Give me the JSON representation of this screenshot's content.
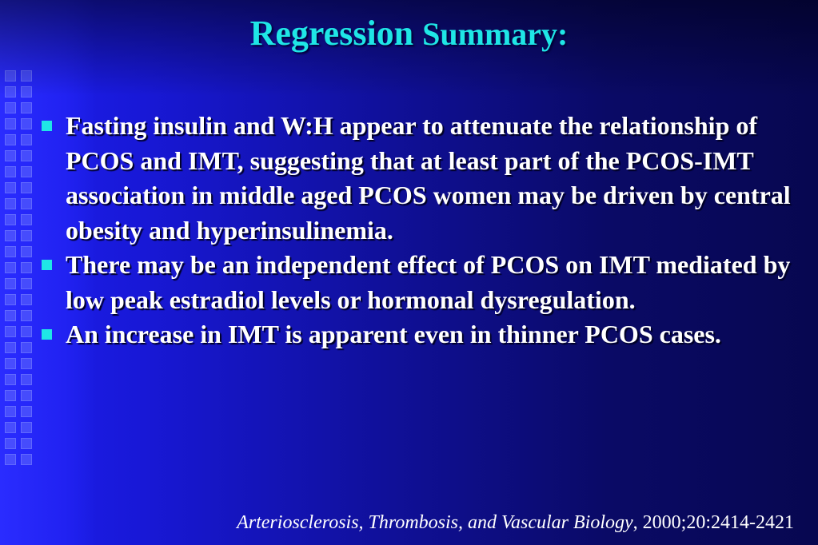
{
  "slide": {
    "title_part1": "Regression",
    "title_part2": "Summary:",
    "bullets": [
      "Fasting insulin and W:H appear to attenuate the relationship of PCOS and IMT, suggesting that at least part of the PCOS-IMT association in middle aged PCOS women may be driven by central obesity and hyperinsulinemia.",
      "There may be an independent effect of PCOS on IMT mediated by low peak estradiol levels or hormonal dysregulation.",
      "An increase in IMT is apparent even in thinner PCOS cases."
    ],
    "citation": {
      "journal": "Arteriosclerosis, Thrombosis, and Vascular Biology",
      "details": ", 2000;20:2414-2421"
    }
  },
  "colors": {
    "title": "#1fe6e6",
    "bullet_marker": "#1fe6e6",
    "body_text": "#ffffff",
    "background_left": "#1d1ff0",
    "background_right": "#070750"
  },
  "icons": {
    "bullet_marker": "square-bullet-icon"
  }
}
